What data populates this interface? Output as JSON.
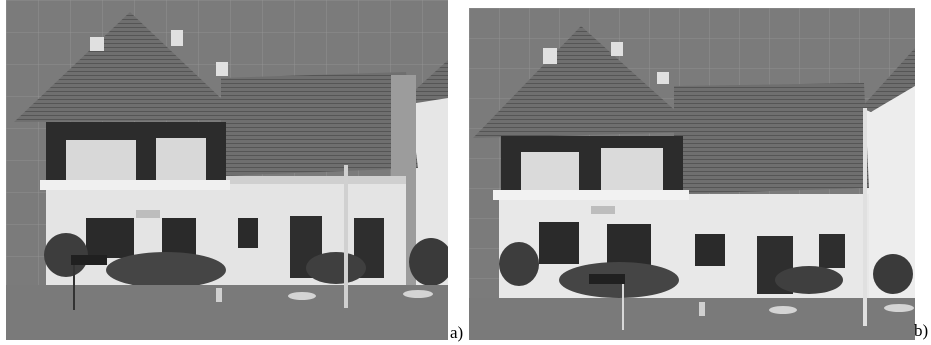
{
  "figure": {
    "panels": [
      {
        "id": "a",
        "label": "a)"
      },
      {
        "id": "b",
        "label": "b)"
      }
    ]
  },
  "colors": {
    "background_grey": "#7b7b7b",
    "grid_line": "#9a9a9a",
    "roof": "#707070",
    "wall": "#e8e8e8",
    "window_dark": "#2a2a2a",
    "vegetation": "#3d3d3d"
  }
}
